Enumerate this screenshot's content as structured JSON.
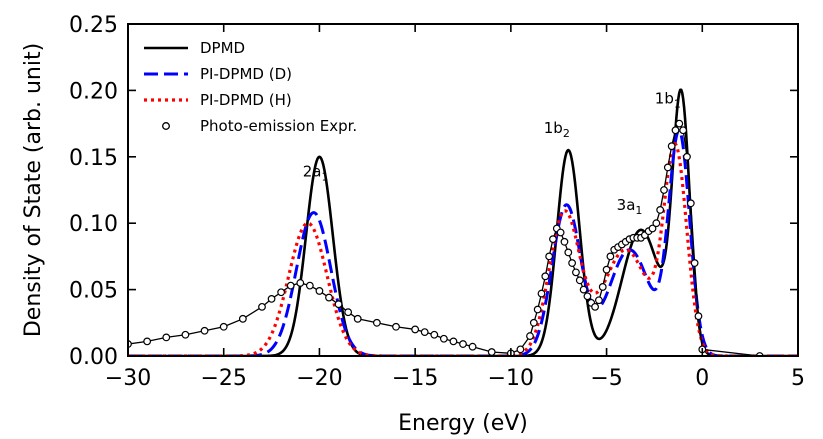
{
  "chart_data": {
    "type": "line",
    "title": "",
    "xlabel": "Energy (eV)",
    "ylabel": "Density of State (arb. unit)",
    "xlim": [
      -30,
      5
    ],
    "ylim": [
      0.0,
      0.25
    ],
    "x_ticks": [
      -30,
      -25,
      -20,
      -15,
      -10,
      -5,
      0,
      5
    ],
    "x_tick_labels": [
      "−30",
      "−25",
      "−20",
      "−15",
      "−10",
      "−5",
      "0",
      "5"
    ],
    "y_ticks": [
      0.0,
      0.05,
      0.1,
      0.15,
      0.2,
      0.25
    ],
    "y_tick_labels": [
      "0.00",
      "0.05",
      "0.10",
      "0.15",
      "0.20",
      "0.25"
    ],
    "grid": false,
    "legend_position": "top-left",
    "series": [
      {
        "name": "DPMD",
        "style": "solid",
        "color": "#000000",
        "peaks": [
          {
            "center": -20.0,
            "height": 0.15,
            "width": 0.7
          },
          {
            "center": -7.0,
            "height": 0.155,
            "width": 0.6
          },
          {
            "center": -3.2,
            "height": 0.095,
            "width": 1.0
          },
          {
            "center": -1.1,
            "height": 0.19,
            "width": 0.45
          }
        ]
      },
      {
        "name": "PI-DPMD (D)",
        "style": "dashed",
        "color": "#0000ff",
        "peaks": [
          {
            "center": -20.3,
            "height": 0.108,
            "width": 0.9
          },
          {
            "center": -7.1,
            "height": 0.113,
            "width": 0.75
          },
          {
            "center": -3.8,
            "height": 0.08,
            "width": 1.1
          },
          {
            "center": -1.2,
            "height": 0.165,
            "width": 0.55
          }
        ]
      },
      {
        "name": "PI-DPMD (H)",
        "style": "dotted",
        "color": "#ff0000",
        "peaks": [
          {
            "center": -20.6,
            "height": 0.1,
            "width": 1.0
          },
          {
            "center": -7.2,
            "height": 0.107,
            "width": 0.8
          },
          {
            "center": -4.0,
            "height": 0.08,
            "width": 1.2
          },
          {
            "center": -1.4,
            "height": 0.152,
            "width": 0.6
          }
        ]
      },
      {
        "name": "Photo-emission Expr.",
        "style": "line-markers",
        "marker": "circle",
        "color": "#000000",
        "x": [
          -30.0,
          -29.0,
          -28.0,
          -27.0,
          -26.0,
          -25.0,
          -24.0,
          -23.0,
          -22.5,
          -22.0,
          -21.5,
          -21.0,
          -20.5,
          -20.0,
          -19.5,
          -19.0,
          -18.5,
          -18.0,
          -17.0,
          -16.0,
          -15.0,
          -14.5,
          -14.0,
          -13.5,
          -13.0,
          -12.5,
          -12.0,
          -11.0,
          -10.0,
          -9.5,
          -9.0,
          -8.8,
          -8.6,
          -8.4,
          -8.2,
          -8.0,
          -7.8,
          -7.6,
          -7.4,
          -7.2,
          -7.0,
          -6.8,
          -6.6,
          -6.4,
          -6.2,
          -6.0,
          -5.8,
          -5.6,
          -5.4,
          -5.2,
          -5.0,
          -4.8,
          -4.6,
          -4.4,
          -4.2,
          -4.0,
          -3.8,
          -3.6,
          -3.4,
          -3.2,
          -3.0,
          -2.8,
          -2.6,
          -2.4,
          -2.2,
          -2.0,
          -1.8,
          -1.6,
          -1.4,
          -1.2,
          -1.0,
          -0.8,
          -0.6,
          -0.4,
          -0.2,
          0.0,
          3.0
        ],
        "y": [
          0.009,
          0.011,
          0.014,
          0.016,
          0.019,
          0.022,
          0.028,
          0.037,
          0.043,
          0.048,
          0.053,
          0.055,
          0.053,
          0.049,
          0.044,
          0.039,
          0.033,
          0.028,
          0.025,
          0.022,
          0.02,
          0.018,
          0.016,
          0.013,
          0.011,
          0.009,
          0.007,
          0.003,
          0.002,
          0.005,
          0.015,
          0.025,
          0.035,
          0.047,
          0.06,
          0.075,
          0.088,
          0.096,
          0.093,
          0.086,
          0.078,
          0.07,
          0.063,
          0.057,
          0.05,
          0.045,
          0.04,
          0.037,
          0.042,
          0.052,
          0.065,
          0.075,
          0.08,
          0.082,
          0.084,
          0.086,
          0.088,
          0.089,
          0.089,
          0.089,
          0.091,
          0.094,
          0.096,
          0.1,
          0.11,
          0.125,
          0.142,
          0.158,
          0.17,
          0.175,
          0.17,
          0.15,
          0.115,
          0.07,
          0.03,
          0.005,
          0.0
        ]
      }
    ],
    "annotations": [
      {
        "text": "2a",
        "sub": "1",
        "x": -20.2,
        "y": 0.135
      },
      {
        "text": "1b",
        "sub": "2",
        "x": -7.6,
        "y": 0.168
      },
      {
        "text": "3a",
        "sub": "1",
        "x": -3.8,
        "y": 0.11
      },
      {
        "text": "1b",
        "sub": "1",
        "x": -1.8,
        "y": 0.19
      }
    ]
  }
}
